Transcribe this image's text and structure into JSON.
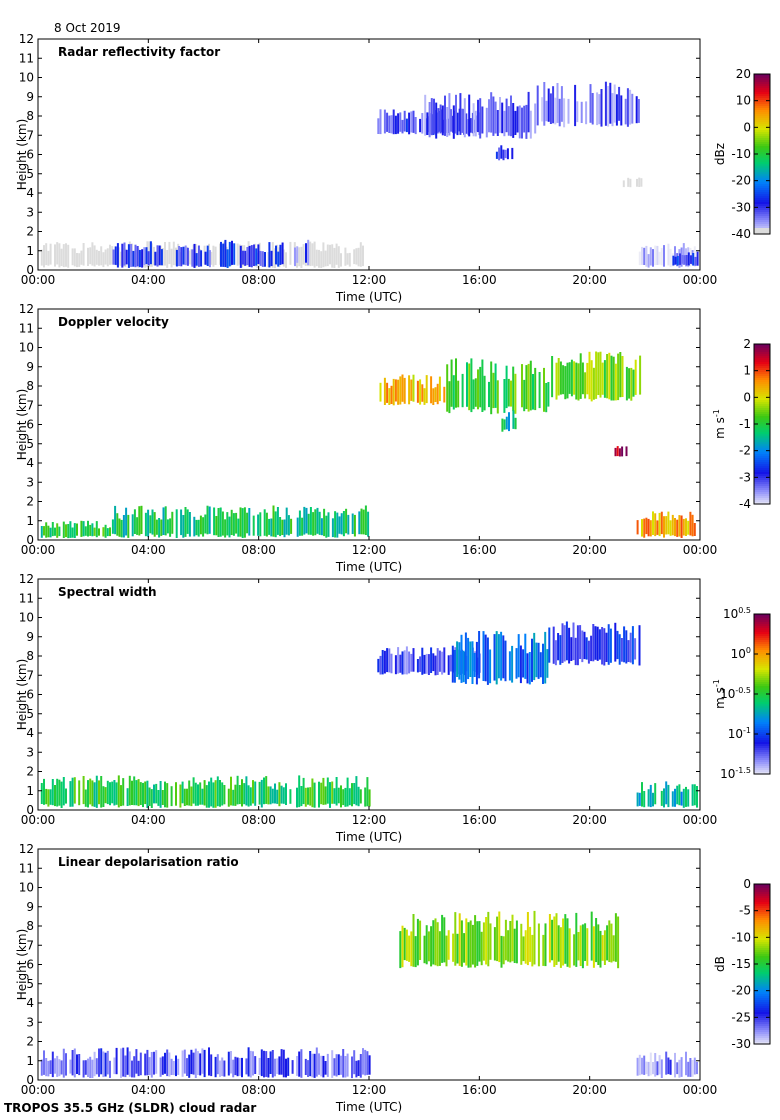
{
  "figure": {
    "date_label": "8 Oct 2019",
    "footer_label": "TROPOS 35.5 GHz (SLDR) cloud radar"
  },
  "chart_data": [
    {
      "type": "heatmap",
      "title": "Radar reflectivity factor",
      "xlabel": "Time (UTC)",
      "ylabel": "Height (km)",
      "xlim": [
        0,
        24
      ],
      "ylim": [
        0,
        12
      ],
      "xticks": [
        "00:00",
        "04:00",
        "08:00",
        "12:00",
        "16:00",
        "20:00",
        "00:00"
      ],
      "yticks": [
        "0",
        "1",
        "2",
        "3",
        "4",
        "5",
        "6",
        "7",
        "8",
        "9",
        "10",
        "11",
        "12"
      ],
      "colorbar": {
        "label": "dBz",
        "ticks": [
          "20",
          "10",
          "0",
          "-10",
          "-20",
          "-30",
          "-40"
        ],
        "min": -40,
        "max": 20,
        "palette": "rainbow_gray_bottom"
      },
      "regions": [
        {
          "t0": 0.1,
          "t1": 11.9,
          "h0": 0.1,
          "h1": 1.5,
          "value": -40
        },
        {
          "t0": 2.7,
          "t1": 4.5,
          "h0": 0.1,
          "h1": 1.5,
          "value": -30
        },
        {
          "t0": 5.0,
          "t1": 6.3,
          "h0": 0.1,
          "h1": 1.4,
          "value": -30
        },
        {
          "t0": 6.6,
          "t1": 8.9,
          "h0": 0.1,
          "h1": 1.6,
          "value": -28
        },
        {
          "t0": 9.2,
          "t1": 9.8,
          "h0": 0.2,
          "h1": 1.8,
          "value": -31
        },
        {
          "t0": 12.3,
          "t1": 16.0,
          "h0": 7.0,
          "h1": 8.4,
          "value": -30
        },
        {
          "t0": 14.0,
          "t1": 18.0,
          "h0": 6.8,
          "h1": 9.3,
          "value": -32
        },
        {
          "t0": 16.6,
          "t1": 17.2,
          "h0": 5.7,
          "h1": 6.5,
          "value": -30
        },
        {
          "t0": 18.0,
          "t1": 21.8,
          "h0": 7.4,
          "h1": 9.8,
          "value": -33
        },
        {
          "t0": 21.2,
          "t1": 21.9,
          "h0": 4.3,
          "h1": 4.8,
          "value": -40
        },
        {
          "t0": 21.7,
          "t1": 23.9,
          "h0": 0.1,
          "h1": 1.4,
          "value": -38
        },
        {
          "t0": 23.0,
          "t1": 23.9,
          "h0": 0.2,
          "h1": 1.0,
          "value": -28
        }
      ]
    },
    {
      "type": "heatmap",
      "title": "Doppler velocity",
      "xlabel": "Time (UTC)",
      "ylabel": "Height (km)",
      "xlim": [
        0,
        24
      ],
      "ylim": [
        0,
        12
      ],
      "xticks": [
        "00:00",
        "04:00",
        "08:00",
        "12:00",
        "16:00",
        "20:00",
        "00:00"
      ],
      "yticks": [
        "0",
        "1",
        "2",
        "3",
        "4",
        "5",
        "6",
        "7",
        "8",
        "9",
        "10",
        "11",
        "12"
      ],
      "colorbar": {
        "label": "m s-1",
        "ticks": [
          "2",
          "1",
          "0",
          "-1",
          "-2",
          "-3",
          "-4"
        ],
        "min": -4,
        "max": 2,
        "palette": "rainbow"
      },
      "regions": [
        {
          "t0": 0.1,
          "t1": 2.6,
          "h0": 0.1,
          "h1": 1.0,
          "value": -1.0
        },
        {
          "t0": 2.6,
          "t1": 12.0,
          "h0": 0.1,
          "h1": 1.8,
          "value": -1.2
        },
        {
          "t0": 12.3,
          "t1": 14.8,
          "h0": 7.0,
          "h1": 8.6,
          "value": 0.3
        },
        {
          "t0": 14.8,
          "t1": 18.6,
          "h0": 6.5,
          "h1": 9.5,
          "value": -0.8
        },
        {
          "t0": 16.8,
          "t1": 17.3,
          "h0": 5.6,
          "h1": 6.8,
          "value": -1.5
        },
        {
          "t0": 18.6,
          "t1": 21.8,
          "h0": 7.2,
          "h1": 9.8,
          "value": -0.5
        },
        {
          "t0": 20.9,
          "t1": 21.3,
          "h0": 4.3,
          "h1": 4.9,
          "value": 1.8
        },
        {
          "t0": 21.7,
          "t1": 23.9,
          "h0": 0.1,
          "h1": 1.5,
          "value": 0.5
        }
      ]
    },
    {
      "type": "heatmap",
      "title": "Spectral width",
      "xlabel": "Time (UTC)",
      "ylabel": "Height (km)",
      "xlim": [
        0,
        24
      ],
      "ylim": [
        0,
        12
      ],
      "xticks": [
        "00:00",
        "04:00",
        "08:00",
        "12:00",
        "16:00",
        "20:00",
        "00:00"
      ],
      "yticks": [
        "0",
        "1",
        "2",
        "3",
        "4",
        "5",
        "6",
        "7",
        "8",
        "9",
        "10",
        "11",
        "12"
      ],
      "colorbar": {
        "label": "m s-1",
        "ticks": [
          "10^0.5",
          "10^0",
          "10^-0.5",
          "10^-1",
          "10^-1.5"
        ],
        "min": -1.5,
        "max": 0.5,
        "palette": "rainbow",
        "log": true
      },
      "regions": [
        {
          "t0": 0.1,
          "t1": 12.0,
          "h0": 0.1,
          "h1": 1.8,
          "value": -0.5
        },
        {
          "t0": 12.3,
          "t1": 16.0,
          "h0": 7.0,
          "h1": 8.5,
          "value": -1.2
        },
        {
          "t0": 15.0,
          "t1": 18.5,
          "h0": 6.5,
          "h1": 9.3,
          "value": -0.9
        },
        {
          "t0": 18.5,
          "t1": 21.8,
          "h0": 7.5,
          "h1": 9.8,
          "value": -1.1
        },
        {
          "t0": 21.7,
          "t1": 23.9,
          "h0": 0.1,
          "h1": 1.5,
          "value": -0.7
        }
      ]
    },
    {
      "type": "heatmap",
      "title": "Linear depolarisation ratio",
      "xlabel": "Time (UTC)",
      "ylabel": "Height (km)",
      "xlim": [
        0,
        24
      ],
      "ylim": [
        0,
        12
      ],
      "xticks": [
        "00:00",
        "04:00",
        "08:00",
        "12:00",
        "16:00",
        "20:00",
        "00:00"
      ],
      "yticks": [
        "0",
        "1",
        "2",
        "3",
        "4",
        "5",
        "6",
        "7",
        "8",
        "9",
        "10",
        "11",
        "12"
      ],
      "colorbar": {
        "label": "dB",
        "ticks": [
          "0",
          "-5",
          "-10",
          "-15",
          "-20",
          "-25",
          "-30"
        ],
        "min": -30,
        "max": 0,
        "palette": "rainbow"
      },
      "regions": [
        {
          "t0": 0.1,
          "t1": 12.0,
          "h0": 0.1,
          "h1": 1.7,
          "value": -26
        },
        {
          "t0": 13.1,
          "t1": 21.0,
          "h0": 5.8,
          "h1": 8.8,
          "value": -12
        },
        {
          "t0": 21.7,
          "t1": 23.9,
          "h0": 0.1,
          "h1": 1.5,
          "value": -27
        }
      ]
    }
  ]
}
